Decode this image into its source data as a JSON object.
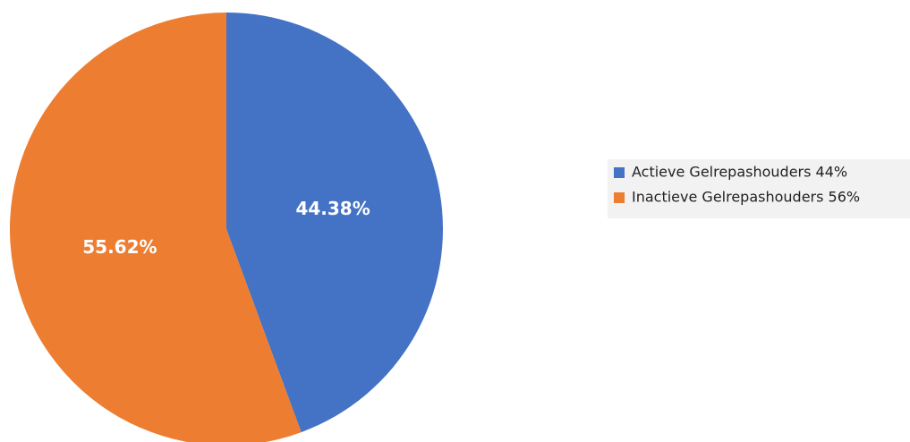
{
  "chart_data": {
    "type": "pie",
    "title": "",
    "slices": [
      {
        "name": "Actieve Gelrepashouders 44%",
        "value": 44.38,
        "label": "44.38%",
        "color": "#4472C4"
      },
      {
        "name": "Inactieve Gelrepashouders 56%",
        "value": 55.62,
        "label": "55.62%",
        "color": "#ED7D31"
      }
    ],
    "start_angle": "12 o'clock",
    "direction": "clockwise",
    "legend": {
      "position": "right",
      "background": "#F2F2F2"
    }
  }
}
